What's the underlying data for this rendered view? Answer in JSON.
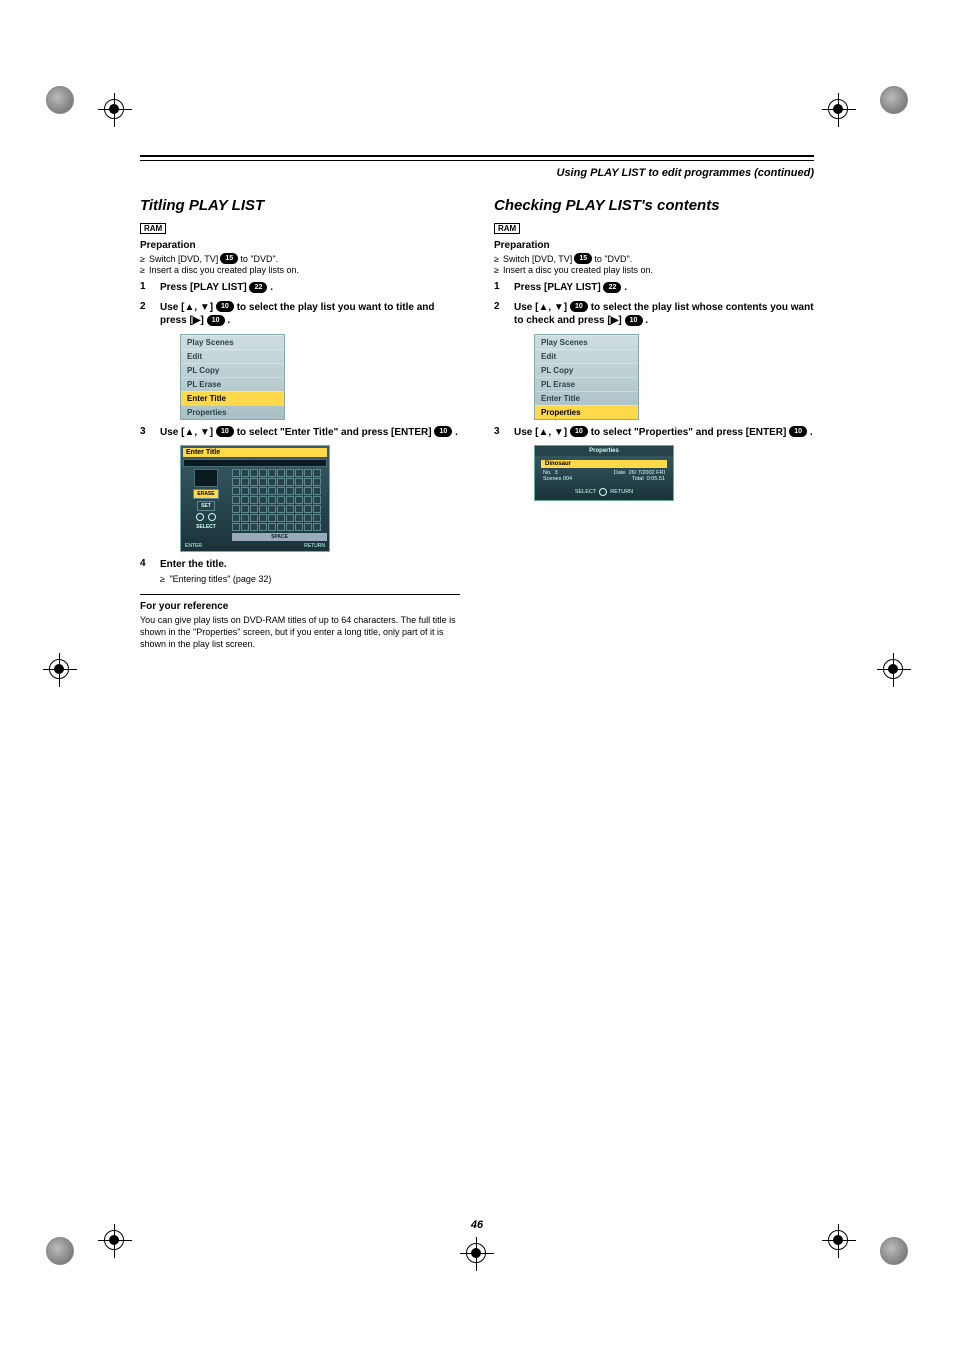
{
  "header": "Using PLAY LIST to edit programmes (continued)",
  "page_number": "46",
  "badges": {
    "ram": "RAM"
  },
  "pills": {
    "p10": "10",
    "p15": "15",
    "p22": "22"
  },
  "left": {
    "title": "Titling PLAY LIST",
    "prep_title": "Preparation",
    "prep1_a": "Switch [DVD, TV]",
    "prep1_b": "to \"DVD\".",
    "prep2": "Insert a disc you created play lists on.",
    "step1_a": "Press [PLAY LIST]",
    "step1_b": ".",
    "step2_a": "Use [▲, ▼]",
    "step2_b": "to select the play list you want to title and press [▶]",
    "step2_c": ".",
    "step3_a": "Use [▲, ▼]",
    "step3_b": "to select \"Enter Title\" and press [ENTER]",
    "step3_c": ".",
    "step4": "Enter the title.",
    "step4_note": "\"Entering titles\" (page 32)",
    "menu": [
      "Play Scenes",
      "Edit",
      "PL Copy",
      "PL Erase",
      "Enter Title",
      "Properties"
    ],
    "menu_highlight_index": 4,
    "enter_title_ui": {
      "head": "Enter Title",
      "erase": "ERASE",
      "set": "SET",
      "select": "SELECT",
      "enter": "ENTER",
      "return": "RETURN",
      "space": "SPACE"
    },
    "ref_title": "For your reference",
    "ref_body": "You can give play lists on DVD-RAM titles of up to 64 characters. The full title is shown in the \"Properties\" screen, but if you enter a long title, only part of it is shown in the play list screen."
  },
  "right": {
    "title": "Checking PLAY LIST's contents",
    "prep_title": "Preparation",
    "prep1_a": "Switch [DVD, TV]",
    "prep1_b": "to \"DVD\".",
    "prep2": "Insert a disc you created play lists on.",
    "step1_a": "Press [PLAY LIST]",
    "step1_b": ".",
    "step2_a": "Use [▲, ▼]",
    "step2_b": "to select the play list whose contents you want to check and press [▶]",
    "step2_c": ".",
    "step3_a": "Use [▲, ▼]",
    "step3_b": "to select \"Properties\" and press [ENTER]",
    "step3_c": ".",
    "menu": [
      "Play Scenes",
      "Edit",
      "PL Copy",
      "PL Erase",
      "Enter Title",
      "Properties"
    ],
    "menu_highlight_index": 5,
    "props_ui": {
      "head": "Properties",
      "title": "Dinosaur",
      "no_label": "No.",
      "no_val": "3",
      "date_label": "Date",
      "date_val": "26/ 7/2002 FRI",
      "scenes_label": "Scenes",
      "scenes_val": "004",
      "total_label": "Total",
      "total_val": "0:05.51",
      "select": "SELECT",
      "return": "RETURN"
    }
  },
  "colors": {
    "menu_yellow": "#ffd94a",
    "menu_bg1": "#d0dde0",
    "menu_bg2": "#a8c0c5",
    "ui_dark1": "#3a5c66",
    "ui_dark2": "#1a333a"
  }
}
